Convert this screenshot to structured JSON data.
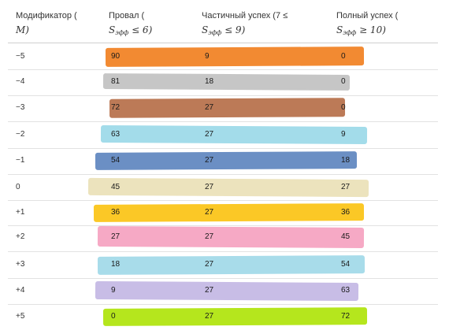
{
  "headers": {
    "modifier": {
      "line1": "Модификатор (",
      "line2": "M)"
    },
    "fail": {
      "line1": "Провал (",
      "line2_prefix": "S",
      "line2_sub": "эфф",
      "line2_rest": " ≤ 6)"
    },
    "partial": {
      "line1": "Частичный успех (7 ≤",
      "line2_prefix": "S",
      "line2_sub": "эфф",
      "line2_rest": " ≤ 9)"
    },
    "full": {
      "line1": "Полный успех (",
      "line2_prefix": "S",
      "line2_sub": "эфф",
      "line2_rest": " ≥ 10)"
    }
  },
  "rows": [
    {
      "modifier": "−5",
      "fail": "90",
      "partial": "9",
      "full": "0",
      "color": "#f28a32"
    },
    {
      "modifier": "−4",
      "fail": "81",
      "partial": "18",
      "full": "0",
      "color": "#c6c6c6"
    },
    {
      "modifier": "−3",
      "fail": "72",
      "partial": "27",
      "full": "0",
      "color": "#bc7a57"
    },
    {
      "modifier": "−2",
      "fail": "63",
      "partial": "27",
      "full": "9",
      "color": "#a3dcea"
    },
    {
      "modifier": "−1",
      "fail": "54",
      "partial": "27",
      "full": "18",
      "color": "#6b8fc4"
    },
    {
      "modifier": "0",
      "fail": "45",
      "partial": "27",
      "full": "27",
      "color": "#ece3bd"
    },
    {
      "modifier": "+1",
      "fail": "36",
      "partial": "27",
      "full": "36",
      "color": "#fbc826"
    },
    {
      "modifier": "+2",
      "fail": "27",
      "partial": "27",
      "full": "45",
      "color": "#f6a9c5"
    },
    {
      "modifier": "+3",
      "fail": "18",
      "partial": "27",
      "full": "54",
      "color": "#a8dcea"
    },
    {
      "modifier": "+4",
      "fail": "9",
      "partial": "27",
      "full": "63",
      "color": "#c8bde6"
    },
    {
      "modifier": "+5",
      "fail": "0",
      "partial": "27",
      "full": "72",
      "color": "#b5e61d"
    }
  ]
}
